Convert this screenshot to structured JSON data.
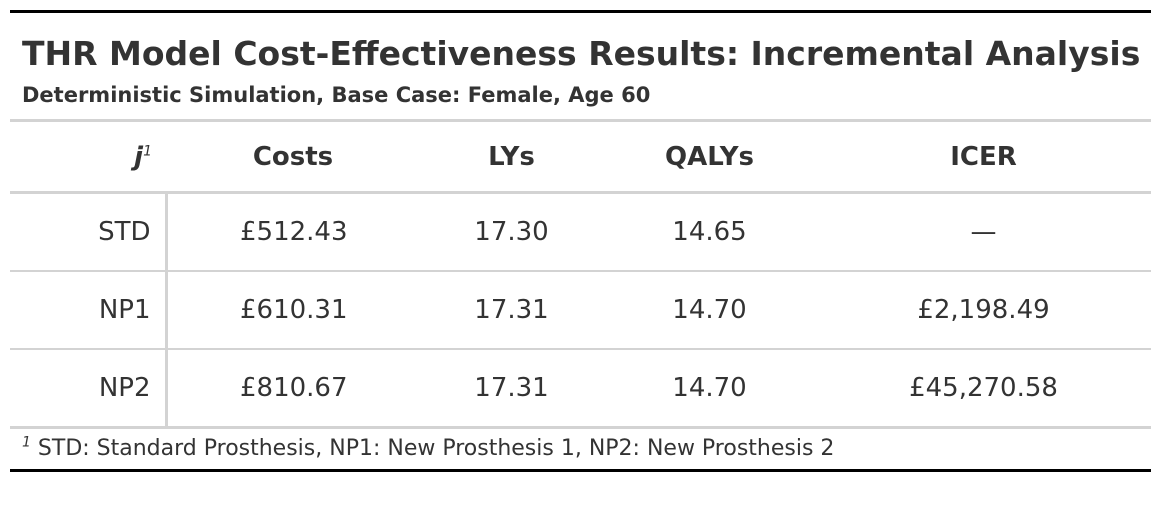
{
  "header": {
    "title": "THR Model Cost-Effectiveness Results: Incremental Analysis",
    "subtitle": "Deterministic Simulation, Base Case: Female, Age 60"
  },
  "columns": {
    "stub_label": "j",
    "stub_mark": "1",
    "labels": [
      "Costs",
      "LYs",
      "QALYs",
      "ICER"
    ]
  },
  "rows": [
    {
      "label": "STD",
      "costs": "£512.43",
      "lys": "17.30",
      "qalys": "14.65",
      "icer": "—"
    },
    {
      "label": "NP1",
      "costs": "£610.31",
      "lys": "17.31",
      "qalys": "14.70",
      "icer": "£2,198.49"
    },
    {
      "label": "NP2",
      "costs": "£810.67",
      "lys": "17.31",
      "qalys": "14.70",
      "icer": "£45,270.58"
    }
  ],
  "footnote": {
    "mark": "1",
    "text": "STD: Standard Prosthesis, NP1: New Prosthesis 1, NP2: New Prosthesis 2"
  }
}
